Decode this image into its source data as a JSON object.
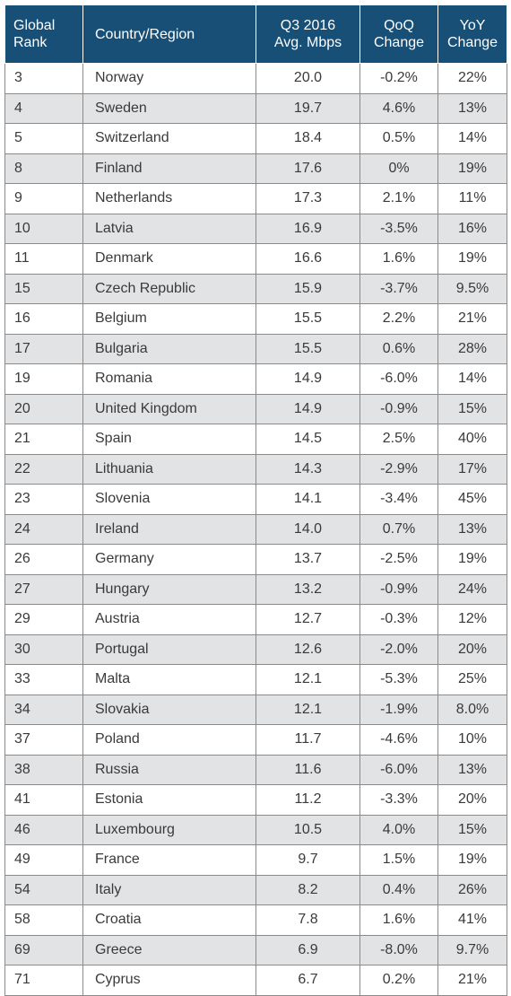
{
  "table": {
    "headers": {
      "rank": [
        "Global",
        "Rank"
      ],
      "country": [
        "Country/Region"
      ],
      "mbps": [
        "Q3 2016",
        "Avg. Mbps"
      ],
      "qoq": [
        "QoQ",
        "Change"
      ],
      "yoy": [
        "YoY",
        "Change"
      ]
    },
    "rows": [
      {
        "rank": "3",
        "country": "Norway",
        "mbps": "20.0",
        "qoq": "-0.2%",
        "yoy": "22%"
      },
      {
        "rank": "4",
        "country": "Sweden",
        "mbps": "19.7",
        "qoq": "4.6%",
        "yoy": "13%"
      },
      {
        "rank": "5",
        "country": "Switzerland",
        "mbps": "18.4",
        "qoq": "0.5%",
        "yoy": "14%"
      },
      {
        "rank": "8",
        "country": "Finland",
        "mbps": "17.6",
        "qoq": "0%",
        "yoy": "19%"
      },
      {
        "rank": "9",
        "country": "Netherlands",
        "mbps": "17.3",
        "qoq": "2.1%",
        "yoy": "11%"
      },
      {
        "rank": "10",
        "country": "Latvia",
        "mbps": "16.9",
        "qoq": "-3.5%",
        "yoy": "16%"
      },
      {
        "rank": "11",
        "country": "Denmark",
        "mbps": "16.6",
        "qoq": "1.6%",
        "yoy": "19%"
      },
      {
        "rank": "15",
        "country": "Czech Republic",
        "mbps": "15.9",
        "qoq": "-3.7%",
        "yoy": "9.5%"
      },
      {
        "rank": "16",
        "country": "Belgium",
        "mbps": "15.5",
        "qoq": "2.2%",
        "yoy": "21%"
      },
      {
        "rank": "17",
        "country": "Bulgaria",
        "mbps": "15.5",
        "qoq": "0.6%",
        "yoy": "28%"
      },
      {
        "rank": "19",
        "country": "Romania",
        "mbps": "14.9",
        "qoq": "-6.0%",
        "yoy": "14%"
      },
      {
        "rank": "20",
        "country": "United Kingdom",
        "mbps": "14.9",
        "qoq": "-0.9%",
        "yoy": "15%"
      },
      {
        "rank": "21",
        "country": "Spain",
        "mbps": "14.5",
        "qoq": "2.5%",
        "yoy": "40%"
      },
      {
        "rank": "22",
        "country": "Lithuania",
        "mbps": "14.3",
        "qoq": "-2.9%",
        "yoy": "17%"
      },
      {
        "rank": "23",
        "country": "Slovenia",
        "mbps": "14.1",
        "qoq": "-3.4%",
        "yoy": "45%"
      },
      {
        "rank": "24",
        "country": "Ireland",
        "mbps": "14.0",
        "qoq": "0.7%",
        "yoy": "13%"
      },
      {
        "rank": "26",
        "country": "Germany",
        "mbps": "13.7",
        "qoq": "-2.5%",
        "yoy": "19%"
      },
      {
        "rank": "27",
        "country": "Hungary",
        "mbps": "13.2",
        "qoq": "-0.9%",
        "yoy": "24%"
      },
      {
        "rank": "29",
        "country": "Austria",
        "mbps": "12.7",
        "qoq": "-0.3%",
        "yoy": "12%"
      },
      {
        "rank": "30",
        "country": "Portugal",
        "mbps": "12.6",
        "qoq": "-2.0%",
        "yoy": "20%"
      },
      {
        "rank": "33",
        "country": "Malta",
        "mbps": "12.1",
        "qoq": "-5.3%",
        "yoy": "25%"
      },
      {
        "rank": "34",
        "country": "Slovakia",
        "mbps": "12.1",
        "qoq": "-1.9%",
        "yoy": "8.0%"
      },
      {
        "rank": "37",
        "country": "Poland",
        "mbps": "11.7",
        "qoq": "-4.6%",
        "yoy": "10%"
      },
      {
        "rank": "38",
        "country": "Russia",
        "mbps": "11.6",
        "qoq": "-6.0%",
        "yoy": "13%"
      },
      {
        "rank": "41",
        "country": "Estonia",
        "mbps": "11.2",
        "qoq": "-3.3%",
        "yoy": "20%"
      },
      {
        "rank": "46",
        "country": "Luxembourg",
        "mbps": "10.5",
        "qoq": "4.0%",
        "yoy": "15%"
      },
      {
        "rank": "49",
        "country": "France",
        "mbps": "9.7",
        "qoq": "1.5%",
        "yoy": "19%"
      },
      {
        "rank": "54",
        "country": "Italy",
        "mbps": "8.2",
        "qoq": "0.4%",
        "yoy": "26%"
      },
      {
        "rank": "58",
        "country": "Croatia",
        "mbps": "7.8",
        "qoq": "1.6%",
        "yoy": "41%"
      },
      {
        "rank": "69",
        "country": "Greece",
        "mbps": "6.9",
        "qoq": "-8.0%",
        "yoy": "9.7%"
      },
      {
        "rank": "71",
        "country": "Cyprus",
        "mbps": "6.7",
        "qoq": "0.2%",
        "yoy": "21%"
      }
    ]
  },
  "colors": {
    "header_bg": "#174f77",
    "header_text": "#ffffff",
    "row_alt_bg": "#e2e3e5",
    "grid": "#8a8a8a"
  }
}
